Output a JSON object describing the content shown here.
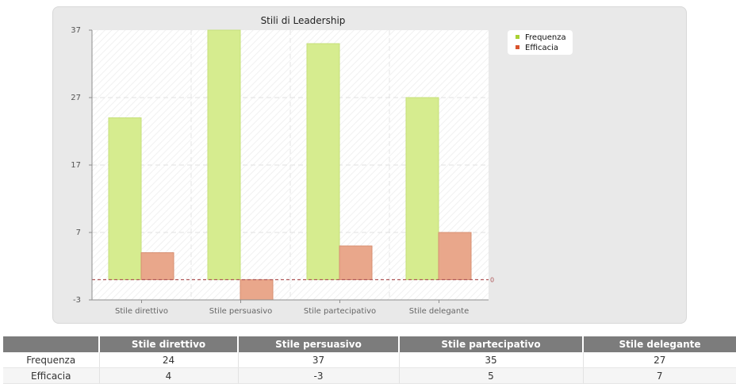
{
  "chart_data": {
    "type": "bar",
    "title": "Stili di Leadership",
    "categories": [
      "Stile direttivo",
      "Stile persuasivo",
      "Stile partecipativo",
      "Stile delegante"
    ],
    "series": [
      {
        "name": "Frequenza",
        "values": [
          24,
          37,
          35,
          27
        ],
        "color": "#d6ec8f"
      },
      {
        "name": "Efficacia",
        "values": [
          4,
          -3,
          5,
          7
        ],
        "color": "#e9a78b"
      }
    ],
    "ylim": [
      -3,
      37
    ],
    "yticks": [
      "37",
      "27",
      "17",
      "7",
      "-3"
    ],
    "reference_line": {
      "value": 0,
      "label": "0"
    },
    "grid": true,
    "legend_position": "right"
  },
  "table": {
    "headers": [
      "",
      "Stile direttivo",
      "Stile persuasivo",
      "Stile partecipativo",
      "Stile delegante"
    ],
    "rows": [
      {
        "label": "Frequenza",
        "cells": [
          "24",
          "37",
          "35",
          "27"
        ]
      },
      {
        "label": "Efficacia",
        "cells": [
          "4",
          "-3",
          "5",
          "7"
        ]
      }
    ]
  }
}
